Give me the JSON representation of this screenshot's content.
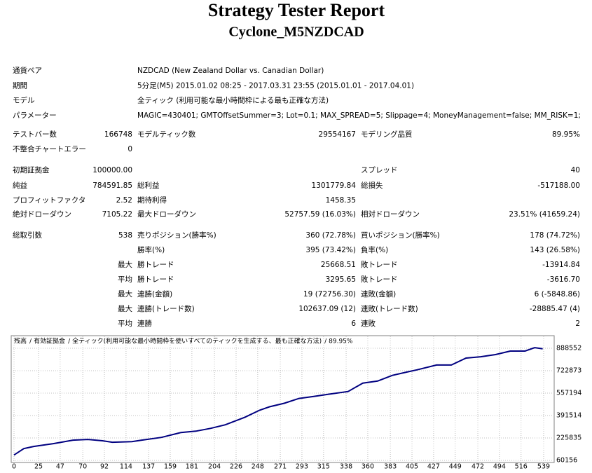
{
  "header": {
    "title": "Strategy Tester Report",
    "subtitle": "Cyclone_M5NZDCAD"
  },
  "info": [
    {
      "label": "通貨ペア",
      "value": "NZDCAD (New Zealand Dollar vs. Canadian Dollar)"
    },
    {
      "label": "期間",
      "value": "5分足(M5) 2015.01.02 08:25 - 2017.03.31 23:55 (2015.01.01 - 2017.04.01)"
    },
    {
      "label": "モデル",
      "value": "全ティック (利用可能な最小時間枠による最も正確な方法)"
    },
    {
      "label": "パラメーター",
      "value": "MAGIC=430401; GMTOffsetSummer=3; Lot=0.1; MAX_SPREAD=5; Slippage=4; MoneyManagement=false; MM_RISK=1;"
    }
  ],
  "table": {
    "rows": [
      [
        "テストバー数",
        "166748",
        "モデルティック数",
        "29554167",
        "モデリング品質",
        "89.95%"
      ],
      [
        "不整合チャートエラー",
        "0",
        null,
        null,
        null,
        null
      ],
      [
        "初期証拠金",
        "100000.00",
        null,
        null,
        "スプレッド",
        "40"
      ],
      [
        "純益",
        "784591.85",
        "総利益",
        "1301779.84",
        "総損失",
        "-517188.00"
      ],
      [
        "プロフィットファクタ",
        "2.52",
        "期待利得",
        "1458.35",
        null,
        null
      ],
      [
        "絶対ドローダウン",
        "7105.22",
        "最大ドローダウン",
        "52757.59 (16.03%)",
        "相対ドローダウン",
        "23.51% (41659.24)"
      ],
      [
        "総取引数",
        "538",
        "売りポジション(勝率%)",
        "360 (72.78%)",
        "買いポジション(勝率%)",
        "178 (74.72%)"
      ],
      [
        null,
        null,
        "勝率(%)",
        "395 (73.42%)",
        "負率(%)",
        "143 (26.58%)"
      ],
      [
        null,
        "最大",
        "勝トレード",
        "25668.51",
        "敗トレード",
        "-13914.84"
      ],
      [
        null,
        "平均",
        "勝トレード",
        "3295.65",
        "敗トレード",
        "-3616.70"
      ],
      [
        null,
        "最大",
        "連勝(金額)",
        "19 (72756.30)",
        "連敗(金額)",
        "6 (-5848.86)"
      ],
      [
        null,
        "最大",
        "連勝(トレード数)",
        "102637.09 (12)",
        "連敗(トレード数)",
        "-28885.47 (4)"
      ],
      [
        null,
        "平均",
        "連勝",
        "6",
        "連敗",
        "2"
      ]
    ]
  },
  "chart_data": {
    "type": "line",
    "legend": [
      {
        "text": "残高",
        "color": "#000080"
      },
      {
        "text": "有効証拠金",
        "color": "#008000"
      },
      {
        "text": "全ティック(利用可能な最小時間枠を使いすべてのティックを生成する、最も正確な方法)",
        "color": "#000000"
      },
      {
        "text": "89.95%",
        "color": "#000000"
      }
    ],
    "separator": "/",
    "x": [
      0,
      10,
      20,
      40,
      60,
      75,
      90,
      100,
      120,
      130,
      150,
      170,
      185,
      200,
      215,
      235,
      250,
      260,
      275,
      290,
      305,
      320,
      340,
      355,
      370,
      385,
      400,
      410,
      430,
      445,
      460,
      475,
      490,
      505,
      520,
      530,
      538
    ],
    "series": [
      {
        "name": "残高",
        "color": "#000080",
        "values": [
          100000,
          147000,
          163000,
          184000,
          210000,
          215000,
          205000,
          194000,
          199000,
          210000,
          230000,
          266000,
          276000,
          297000,
          323000,
          379000,
          431000,
          456000,
          482000,
          518000,
          533000,
          549000,
          569000,
          631000,
          646000,
          688000,
          713000,
          729000,
          765000,
          765000,
          816000,
          826000,
          842000,
          868000,
          868000,
          893000,
          884591.85
        ]
      }
    ],
    "xlim": [
      0,
      539
    ],
    "xticks": [
      0,
      25,
      47,
      70,
      92,
      114,
      137,
      159,
      181,
      204,
      226,
      248,
      271,
      293,
      315,
      338,
      360,
      383,
      405,
      427,
      449,
      472,
      494,
      516,
      539
    ],
    "ylim": [
      60156,
      888552
    ],
    "yticks": [
      60156,
      225835,
      391514,
      557194,
      722873,
      888552
    ],
    "grid": true
  }
}
